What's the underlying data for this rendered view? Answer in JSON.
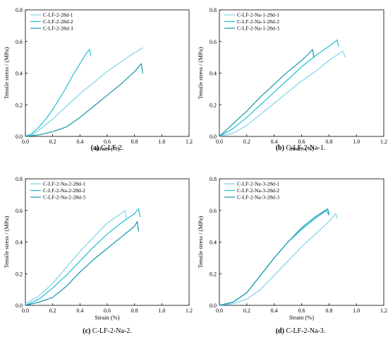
{
  "colors": {
    "series1": "#7fd3e6",
    "series2": "#20c0d6",
    "series3": "#1597aa"
  },
  "chart_data": [
    {
      "type": "line",
      "caption_letter": "(a)",
      "caption_text": " C-LF-2.",
      "xlabel": "Strain (%)",
      "ylabel": "Tensile stress / (MPa)",
      "xlim": [
        0,
        1.2
      ],
      "ylim": [
        0,
        0.8
      ],
      "xticks": [
        "0.0",
        "0.2",
        "0.4",
        "0.6",
        "0.8",
        "1.0",
        "1.2"
      ],
      "yticks": [
        "0.0",
        "0.2",
        "0.4",
        "0.6",
        "0.8"
      ],
      "legend_position": "top-left",
      "grid": false,
      "series": [
        {
          "name": "C-LF-2-28d-1",
          "x": [
            0,
            0.05,
            0.1,
            0.2,
            0.3,
            0.4,
            0.5,
            0.6,
            0.7,
            0.8,
            0.86
          ],
          "y": [
            0,
            0.01,
            0.04,
            0.11,
            0.19,
            0.27,
            0.34,
            0.41,
            0.47,
            0.53,
            0.56
          ]
        },
        {
          "name": "C-LF-2-28d-2",
          "x": [
            0,
            0.05,
            0.1,
            0.15,
            0.2,
            0.25,
            0.3,
            0.35,
            0.4,
            0.45,
            0.47,
            0.48
          ],
          "y": [
            0,
            0.02,
            0.06,
            0.11,
            0.17,
            0.24,
            0.31,
            0.39,
            0.46,
            0.53,
            0.55,
            0.51
          ]
        },
        {
          "name": "C-LF-2-28d-3",
          "x": [
            0,
            0.1,
            0.2,
            0.3,
            0.4,
            0.5,
            0.6,
            0.7,
            0.8,
            0.83,
            0.85,
            0.86
          ],
          "y": [
            0,
            0.01,
            0.03,
            0.06,
            0.12,
            0.19,
            0.26,
            0.33,
            0.41,
            0.44,
            0.46,
            0.4
          ]
        }
      ]
    },
    {
      "type": "line",
      "caption_letter": "(b)",
      "caption_text": " C-LF-2-Na-1.",
      "xlabel": "Strain (%)",
      "ylabel": "Tensile stress / (MPa)",
      "xlim": [
        0,
        1.2
      ],
      "ylim": [
        0,
        0.8
      ],
      "xticks": [
        "0.0",
        "0.2",
        "0.4",
        "0.6",
        "0.8",
        "1.0",
        "1.2"
      ],
      "yticks": [
        "0.0",
        "0.2",
        "0.4",
        "0.6",
        "0.8"
      ],
      "legend_position": "top-left",
      "grid": false,
      "series": [
        {
          "name": "C-LF-2-Na-1-28d-1",
          "x": [
            0,
            0.1,
            0.2,
            0.3,
            0.4,
            0.5,
            0.6,
            0.7,
            0.8,
            0.9,
            0.92
          ],
          "y": [
            0,
            0.02,
            0.07,
            0.14,
            0.21,
            0.28,
            0.35,
            0.41,
            0.48,
            0.54,
            0.5
          ]
        },
        {
          "name": "C-LF-2-Na-1-28d-2",
          "x": [
            0,
            0.1,
            0.2,
            0.3,
            0.4,
            0.5,
            0.6,
            0.7,
            0.8,
            0.86,
            0.87
          ],
          "y": [
            0,
            0.05,
            0.12,
            0.2,
            0.28,
            0.36,
            0.44,
            0.51,
            0.57,
            0.61,
            0.57
          ]
        },
        {
          "name": "C-LF-2-Na-1-28d-3",
          "x": [
            0,
            0.05,
            0.1,
            0.2,
            0.3,
            0.4,
            0.5,
            0.6,
            0.65,
            0.68,
            0.69
          ],
          "y": [
            0,
            0.04,
            0.08,
            0.16,
            0.25,
            0.33,
            0.41,
            0.48,
            0.52,
            0.55,
            0.5
          ]
        }
      ]
    },
    {
      "type": "line",
      "caption_letter": "(c)",
      "caption_text": " C-LF-2-Na-2.",
      "xlabel": "Strain (%)",
      "ylabel": "Tensile stress / (MPa)",
      "xlim": [
        0,
        1.2
      ],
      "ylim": [
        0,
        0.8
      ],
      "xticks": [
        "0.0",
        "0.2",
        "0.4",
        "0.6",
        "0.8",
        "1.0",
        "1.2"
      ],
      "yticks": [
        "0.0",
        "0.2",
        "0.4",
        "0.6",
        "0.8"
      ],
      "legend_position": "top-left",
      "grid": false,
      "series": [
        {
          "name": "C-LF-2-Na-2-28d-1",
          "x": [
            0,
            0.1,
            0.2,
            0.3,
            0.4,
            0.5,
            0.6,
            0.7,
            0.73,
            0.74
          ],
          "y": [
            0.01,
            0.06,
            0.14,
            0.24,
            0.34,
            0.43,
            0.52,
            0.58,
            0.6,
            0.55
          ]
        },
        {
          "name": "C-LF-2-Na-2-28d-2",
          "x": [
            0,
            0.1,
            0.2,
            0.3,
            0.4,
            0.5,
            0.6,
            0.7,
            0.8,
            0.83,
            0.84
          ],
          "y": [
            0,
            0.04,
            0.11,
            0.19,
            0.28,
            0.37,
            0.45,
            0.52,
            0.58,
            0.61,
            0.56
          ]
        },
        {
          "name": "C-LF-2-Na-2-28d-3",
          "x": [
            0,
            0.1,
            0.2,
            0.3,
            0.4,
            0.5,
            0.6,
            0.7,
            0.8,
            0.82,
            0.83
          ],
          "y": [
            0,
            0.02,
            0.05,
            0.12,
            0.21,
            0.29,
            0.36,
            0.43,
            0.5,
            0.53,
            0.47
          ]
        }
      ]
    },
    {
      "type": "line",
      "caption_letter": "(d)",
      "caption_text": " C-LF-2-Na-3.",
      "xlabel": "Strain (%)",
      "ylabel": "Tensile stress / (MPa)",
      "xlim": [
        0,
        1.2
      ],
      "ylim": [
        0,
        0.8
      ],
      "xticks": [
        "0.0",
        "0.2",
        "0.4",
        "0.6",
        "0.8",
        "1.0",
        "1.2"
      ],
      "yticks": [
        "0.0",
        "0.2",
        "0.4",
        "0.6",
        "0.8"
      ],
      "legend_position": "top-left",
      "grid": false,
      "series": [
        {
          "name": "C-LF-2-Na-3-28d-1",
          "x": [
            0,
            0.1,
            0.2,
            0.3,
            0.4,
            0.5,
            0.6,
            0.7,
            0.8,
            0.85,
            0.86
          ],
          "y": [
            0,
            0.01,
            0.04,
            0.1,
            0.19,
            0.28,
            0.37,
            0.45,
            0.53,
            0.58,
            0.55
          ]
        },
        {
          "name": "C-LF-2-Na-3-28d-2",
          "x": [
            0,
            0.1,
            0.2,
            0.3,
            0.4,
            0.5,
            0.6,
            0.7,
            0.78,
            0.8
          ],
          "y": [
            0,
            0.02,
            0.08,
            0.19,
            0.3,
            0.4,
            0.48,
            0.55,
            0.6,
            0.57
          ]
        },
        {
          "name": "C-LF-2-Na-3-28d-3",
          "x": [
            0,
            0.1,
            0.2,
            0.3,
            0.4,
            0.5,
            0.6,
            0.7,
            0.79,
            0.8
          ],
          "y": [
            0,
            0.02,
            0.08,
            0.19,
            0.3,
            0.4,
            0.49,
            0.56,
            0.61,
            0.58
          ]
        }
      ]
    }
  ]
}
